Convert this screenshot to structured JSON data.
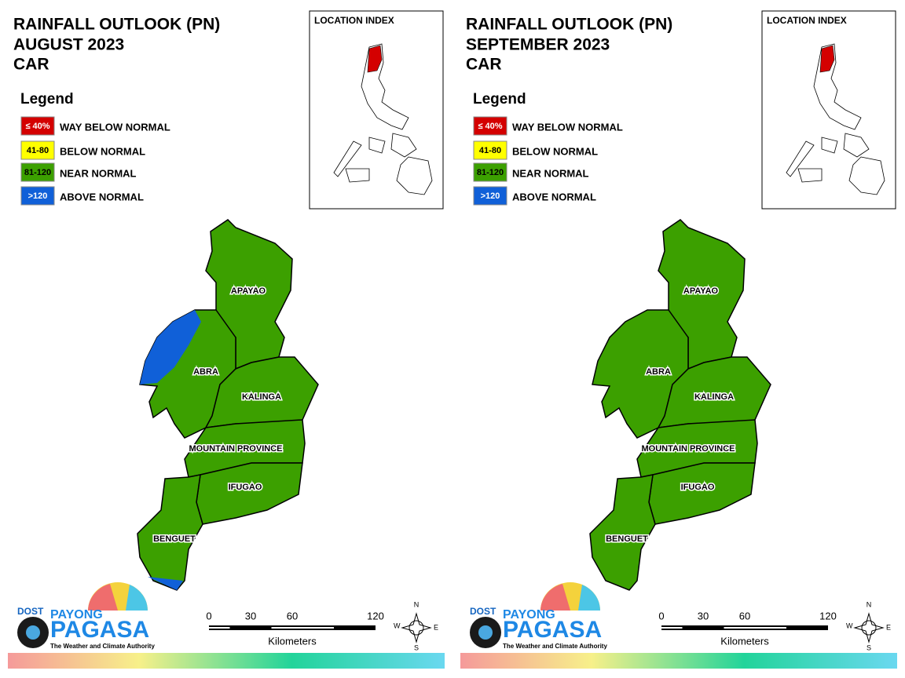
{
  "panels": [
    {
      "title": "RAINFALL OUTLOOK (PN)",
      "month": "AUGUST 2023",
      "region": "CAR",
      "legend": {
        "title": "Legend",
        "items": [
          {
            "swatch": "≤ 40%",
            "label": "WAY BELOW NORMAL",
            "color": "#d40000",
            "text_color": "#ffffff"
          },
          {
            "swatch": "41-80",
            "label": "BELOW NORMAL",
            "color": "#ffff00",
            "text_color": "#000000"
          },
          {
            "swatch": "81-120",
            "label": "NEAR NORMAL",
            "color": "#3ca000",
            "text_color": "#000000"
          },
          {
            "swatch": ">120",
            "label": "ABOVE NORMAL",
            "color": "#1060d8",
            "text_color": "#ffffff"
          }
        ]
      },
      "index_title": "LOCATION INDEX",
      "provinces": [
        {
          "name": "APAYAO",
          "category": 2
        },
        {
          "name": "ABRA",
          "category": 2,
          "partial_category": 3
        },
        {
          "name": "KALINGA",
          "category": 2
        },
        {
          "name": "MOUNTAIN PROVINCE",
          "category": 2
        },
        {
          "name": "IFUGAO",
          "category": 2
        },
        {
          "name": "BENGUET",
          "category": 2,
          "partial_category": 3
        }
      ],
      "scale": {
        "ticks": [
          0,
          30,
          60,
          120
        ],
        "unit": "Kilometers"
      },
      "compass": {
        "n": "N",
        "e": "E",
        "s": "S",
        "w": "W"
      },
      "logo": {
        "dost": "DOST",
        "payong": "PAYONG",
        "pagasa": "PAGASA",
        "tagline": "The Weather and Climate Authority"
      }
    },
    {
      "title": "RAINFALL OUTLOOK (PN)",
      "month": "SEPTEMBER 2023",
      "region": "CAR",
      "legend": {
        "title": "Legend",
        "items": [
          {
            "swatch": "≤ 40%",
            "label": "WAY BELOW NORMAL",
            "color": "#d40000",
            "text_color": "#ffffff"
          },
          {
            "swatch": "41-80",
            "label": "BELOW NORMAL",
            "color": "#ffff00",
            "text_color": "#000000"
          },
          {
            "swatch": "81-120",
            "label": "NEAR NORMAL",
            "color": "#3ca000",
            "text_color": "#000000"
          },
          {
            "swatch": ">120",
            "label": "ABOVE NORMAL",
            "color": "#1060d8",
            "text_color": "#ffffff"
          }
        ]
      },
      "index_title": "LOCATION INDEX",
      "provinces": [
        {
          "name": "APAYAO",
          "category": 2
        },
        {
          "name": "ABRA",
          "category": 2
        },
        {
          "name": "KALINGA",
          "category": 2
        },
        {
          "name": "MOUNTAIN PROVINCE",
          "category": 2
        },
        {
          "name": "IFUGAO",
          "category": 2
        },
        {
          "name": "BENGUET",
          "category": 2
        }
      ],
      "scale": {
        "ticks": [
          0,
          30,
          60,
          120
        ],
        "unit": "Kilometers"
      },
      "compass": {
        "n": "N",
        "e": "E",
        "s": "S",
        "w": "W"
      },
      "logo": {
        "dost": "DOST",
        "payong": "PAYONG",
        "pagasa": "PAGASA",
        "tagline": "The Weather and Climate Authority"
      }
    }
  ]
}
